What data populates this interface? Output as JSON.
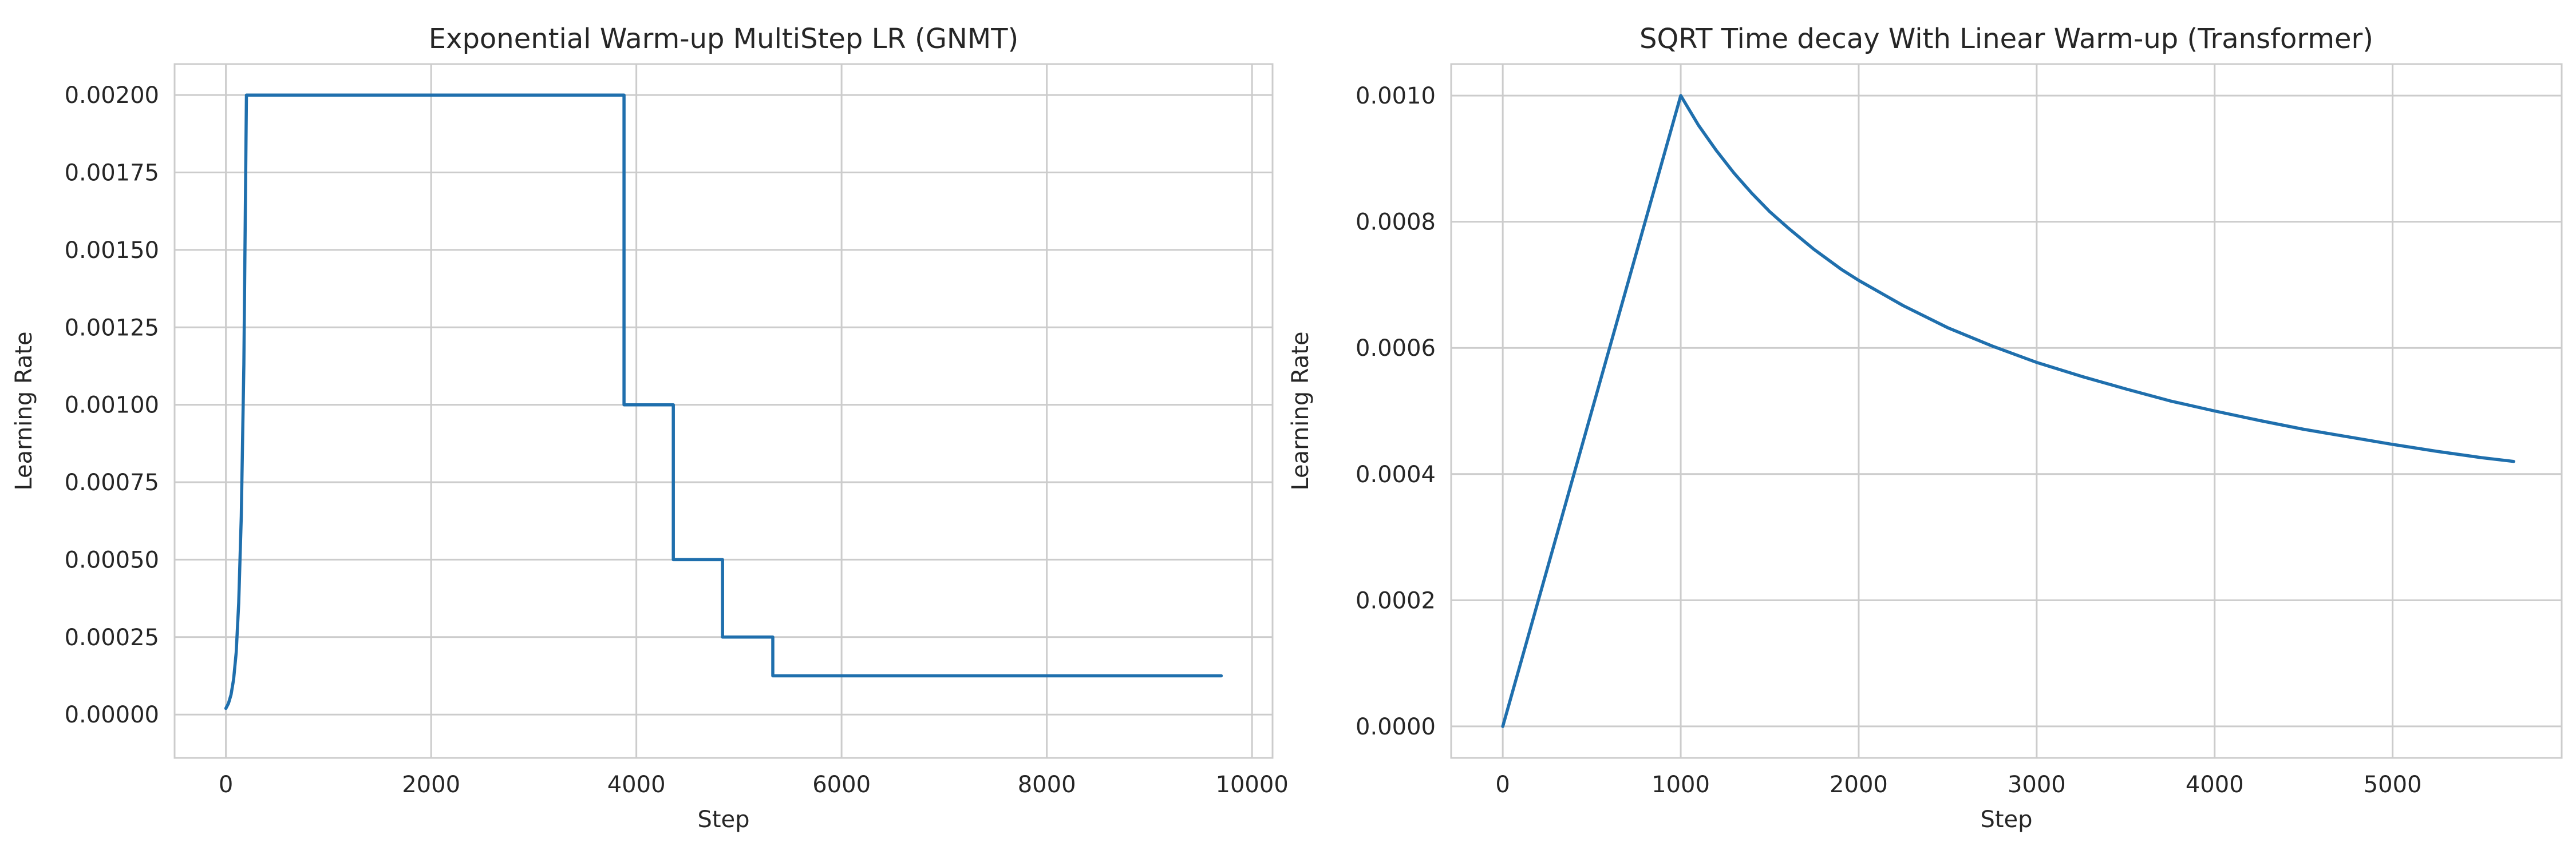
{
  "chart_data": [
    {
      "type": "line",
      "title": "Exponential Warm-up MultiStep LR (GNMT)",
      "xlabel": "Step",
      "ylabel": "Learning Rate",
      "xlim": [
        -500,
        10200
      ],
      "ylim": [
        -0.00014,
        0.0021
      ],
      "xticks": [
        0,
        2000,
        4000,
        6000,
        8000,
        10000
      ],
      "xtick_labels": [
        "0",
        "2000",
        "4000",
        "6000",
        "8000",
        "10000"
      ],
      "yticks": [
        0.0,
        0.00025,
        0.0005,
        0.00075,
        0.001,
        0.00125,
        0.0015,
        0.00175,
        0.002
      ],
      "ytick_labels": [
        "0.00000",
        "0.00025",
        "0.00050",
        "0.00075",
        "0.00100",
        "0.00125",
        "0.00150",
        "0.00175",
        "0.00200"
      ],
      "grid": true,
      "series": [
        {
          "color": "#1f6fad",
          "x": [
            0,
            25,
            50,
            75,
            100,
            125,
            150,
            175,
            200,
            3880,
            3880,
            4360,
            4360,
            4840,
            4840,
            5330,
            5330,
            9700
          ],
          "y": [
            2e-05,
            3.6e-05,
            6.4e-05,
            0.000114,
            0.0002,
            0.00036,
            0.00064,
            0.00113,
            0.002,
            0.002,
            0.001,
            0.001,
            0.0005,
            0.0005,
            0.00025,
            0.00025,
            0.000125,
            0.000125
          ]
        }
      ]
    },
    {
      "type": "line",
      "title": "SQRT Time decay With Linear Warm-up (Transformer)",
      "xlabel": "Step",
      "ylabel": "Learning Rate",
      "xlim": [
        -290,
        5950
      ],
      "ylim": [
        -5e-05,
        0.00105
      ],
      "xticks": [
        0,
        1000,
        2000,
        3000,
        4000,
        5000
      ],
      "xtick_labels": [
        "0",
        "1000",
        "2000",
        "3000",
        "4000",
        "5000"
      ],
      "yticks": [
        0.0,
        0.0002,
        0.0004,
        0.0006,
        0.0008,
        0.001
      ],
      "ytick_labels": [
        "0.0000",
        "0.0002",
        "0.0004",
        "0.0006",
        "0.0008",
        "0.0010"
      ],
      "grid": true,
      "series": [
        {
          "color": "#1f6fad",
          "x": [
            0,
            1000,
            1100,
            1200,
            1300,
            1400,
            1500,
            1600,
            1750,
            1900,
            2000,
            2250,
            2500,
            2750,
            3000,
            3250,
            3500,
            3750,
            4000,
            4250,
            4500,
            4750,
            5000,
            5250,
            5500,
            5680
          ],
          "y": [
            0.0,
            0.001,
            0.000953,
            0.000913,
            0.000877,
            0.000845,
            0.000816,
            0.000791,
            0.000756,
            0.000725,
            0.000707,
            0.000667,
            0.000632,
            0.000603,
            0.000577,
            0.000555,
            0.000535,
            0.000516,
            0.0005,
            0.000485,
            0.000471,
            0.000459,
            0.000447,
            0.000436,
            0.000426,
            0.00042
          ]
        }
      ]
    }
  ]
}
